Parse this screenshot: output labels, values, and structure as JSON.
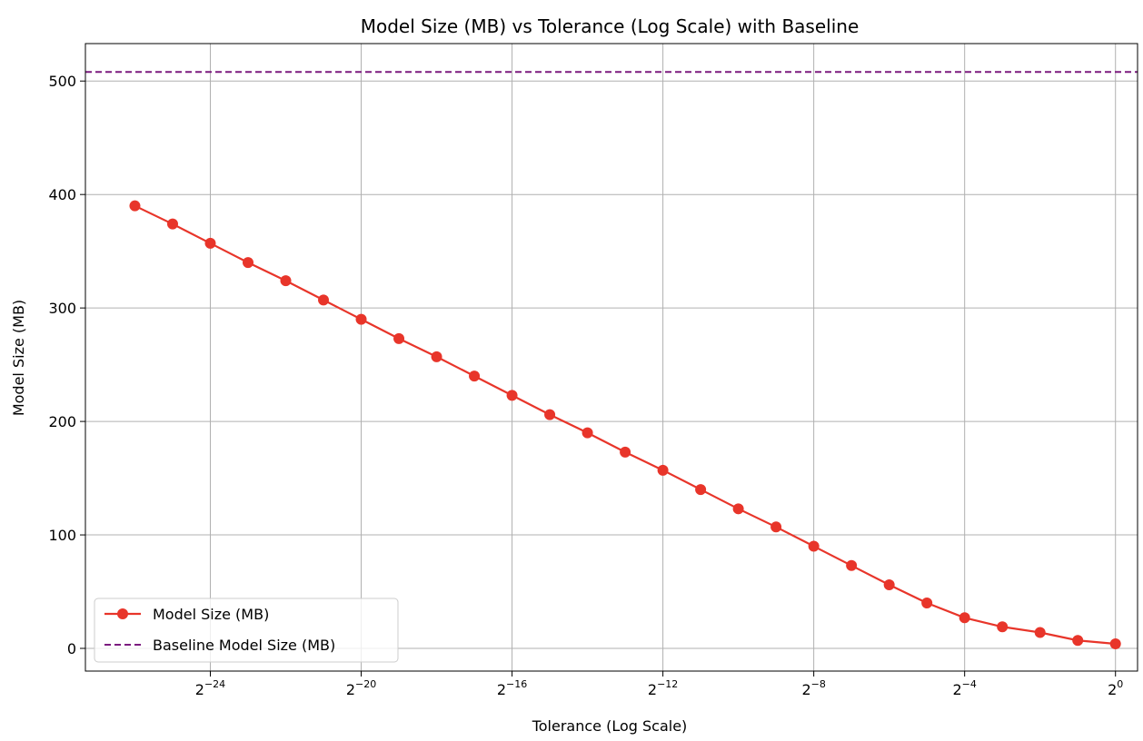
{
  "chart_data": {
    "type": "line",
    "title": "Model Size (MB) vs Tolerance (Log Scale) with Baseline",
    "xlabel": "Tolerance (Log Scale)",
    "ylabel": "Model Size (MB)",
    "x_scale": "log2",
    "xlim": [
      6e-09,
      1.5
    ],
    "ylim": [
      -20,
      533
    ],
    "grid": true,
    "legend_position": "lower-left",
    "x_ticks": [
      {
        "value": 5.960464477539063e-08,
        "base": "2",
        "exp": "−24"
      },
      {
        "value": 9.5367431640625e-07,
        "base": "2",
        "exp": "−20"
      },
      {
        "value": 1.52587890625e-05,
        "base": "2",
        "exp": "−16"
      },
      {
        "value": 0.000244140625,
        "base": "2",
        "exp": "−12"
      },
      {
        "value": 0.00390625,
        "base": "2",
        "exp": "−8"
      },
      {
        "value": 0.0625,
        "base": "2",
        "exp": "−4"
      },
      {
        "value": 1,
        "base": "2",
        "exp": "0"
      }
    ],
    "y_ticks": [
      0,
      100,
      200,
      300,
      400,
      500
    ],
    "series": [
      {
        "name": "Model Size (MB)",
        "style": "line-with-markers",
        "color": "#e8352a",
        "x": [
          1.4901161193847656e-08,
          2.9802322387695312e-08,
          5.960464477539063e-08,
          1.1920928955078125e-07,
          2.384185791015625e-07,
          4.76837158203125e-07,
          9.5367431640625e-07,
          1.9073486328125e-06,
          3.814697265625e-06,
          7.62939453125e-06,
          1.52587890625e-05,
          3.0517578125e-05,
          6.103515625e-05,
          0.0001220703125,
          0.000244140625,
          0.00048828125,
          0.0009765625,
          0.001953125,
          0.00390625,
          0.0078125,
          0.015625,
          0.03125,
          0.0625,
          0.125,
          0.25,
          0.5,
          1
        ],
        "y": [
          390,
          374,
          357,
          340,
          324,
          307,
          290,
          273,
          257,
          240,
          223,
          206,
          190,
          173,
          157,
          140,
          123,
          107,
          90,
          73,
          56,
          40,
          27,
          19,
          14,
          7,
          4
        ]
      },
      {
        "name": "Baseline Model Size (MB)",
        "style": "dashed-hline",
        "color": "#7b1a7f",
        "y": 508
      }
    ]
  }
}
